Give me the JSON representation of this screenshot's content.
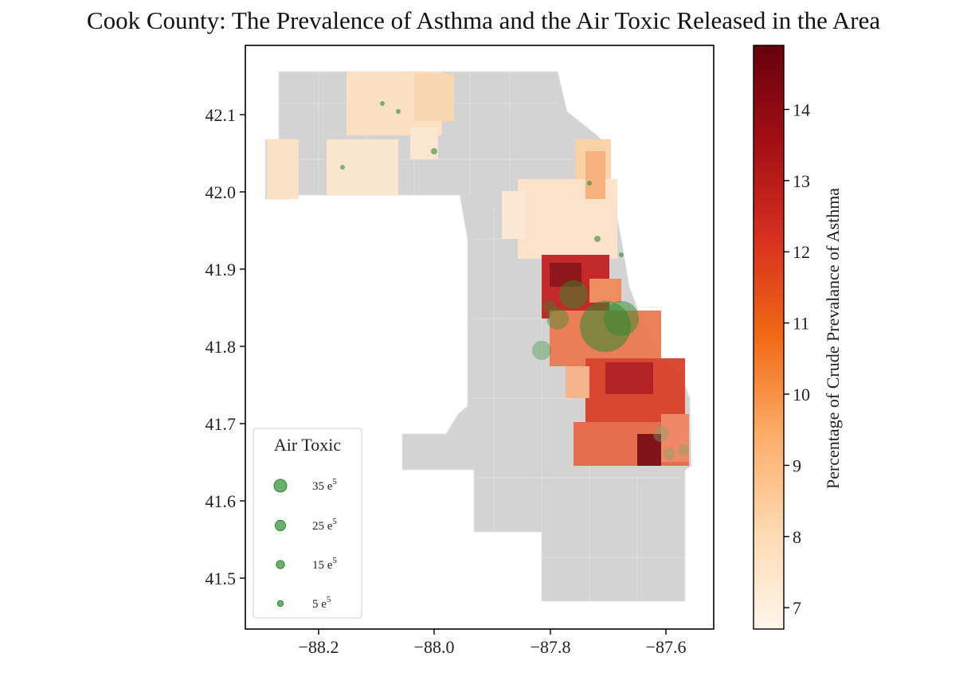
{
  "title": "Cook County: The Prevalence of Asthma and the Air Toxic Released in the Area",
  "chart_data": {
    "type": "choropleth-map",
    "x_ticks": [
      "−88.2",
      "−88.0",
      "−87.8",
      "−87.6"
    ],
    "y_ticks": [
      "42.1",
      "42.0",
      "41.9",
      "41.8",
      "41.7",
      "41.6",
      "41.5"
    ],
    "colorbar": {
      "label": "Percentage of Crude Prevalance of Asthma",
      "ticks": [
        "14",
        "13",
        "12",
        "11",
        "10",
        "9",
        "8",
        "7"
      ],
      "range": [
        6.7,
        14.9
      ],
      "colormap": [
        "#fff5eb",
        "#fdd9b0",
        "#fdae6b",
        "#f16913",
        "#d7301f",
        "#a50f15",
        "#67000d"
      ]
    },
    "legend": {
      "title": "Air Toxic",
      "placement": "lower-left",
      "items": [
        {
          "label": "35 e",
          "sup": "5",
          "value": 35
        },
        {
          "label": "25 e",
          "sup": "5",
          "value": 25
        },
        {
          "label": "15 e",
          "sup": "5",
          "value": 15
        },
        {
          "label": "5 e",
          "sup": "5",
          "value": 5
        }
      ]
    },
    "marker_color": "#2e8b2e",
    "no_data_color": "#d3d3d3"
  }
}
